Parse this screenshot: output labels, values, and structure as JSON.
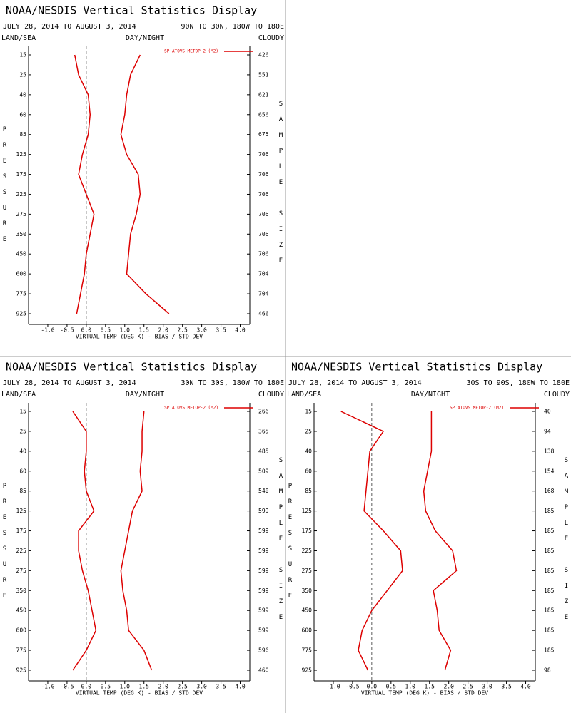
{
  "chart_data": [
    {
      "type": "line",
      "title": "NOAA/NESDIS Vertical Statistics Display",
      "subtitle": "JULY 28, 2014 TO AUGUST 3, 2014",
      "region": "90N TO 30N, 180W TO 180E",
      "land_sea": "LAND/SEA",
      "day_night": "DAY/NIGHT",
      "cloud": "CLOUDY",
      "y_label": "PRESSURE",
      "y2_label": "SAMPLE SIZE",
      "x_label": "VIRTUAL TEMP (DEG K) - BIAS / STD DEV",
      "categories": [
        "15",
        "25",
        "40",
        "60",
        "85",
        "125",
        "175",
        "225",
        "275",
        "350",
        "450",
        "600",
        "775",
        "925"
      ],
      "sample_size": [
        426,
        551,
        621,
        656,
        675,
        706,
        706,
        706,
        706,
        706,
        706,
        704,
        704,
        466
      ],
      "series": [
        {
          "name": "SP ATOVS METOP-2 (M2)",
          "color": "#dd0000",
          "values": [
            -0.3,
            -0.2,
            0.05,
            0.1,
            0.05,
            -0.1,
            -0.2,
            0.0,
            0.2,
            0.1,
            0.0,
            -0.05,
            -0.15,
            -0.25
          ],
          "std_dev": [
            1.4,
            1.15,
            1.05,
            1.0,
            0.9,
            1.05,
            1.35,
            1.4,
            1.3,
            1.15,
            1.1,
            1.05,
            1.55,
            2.15
          ]
        }
      ],
      "xlim": [
        -1.5,
        4.25
      ],
      "xticks": [
        {
          "value": -1,
          "label": "-1.0"
        },
        {
          "value": -0.5,
          "label": "-0.5"
        },
        {
          "value": 0,
          "label": "0.0"
        },
        0.5,
        {
          "value": 1,
          "label": "1.0"
        },
        1.5,
        {
          "value": 2,
          "label": "2.0"
        },
        2.5,
        {
          "value": 3,
          "label": "3.0"
        },
        3.5,
        {
          "value": 4,
          "label": "4.0"
        }
      ],
      "legend": "top-right"
    },
    {
      "type": "line",
      "title": "NOAA/NESDIS Vertical Statistics Display",
      "subtitle": "JULY 28, 2014 TO AUGUST 3, 2014",
      "region": "30N TO 30S, 180W TO 180E",
      "land_sea": "LAND/SEA",
      "day_night": "DAY/NIGHT",
      "cloud": "CLOUDY",
      "y_label": "PRESSURE",
      "y2_label": "SAMPLE SIZE",
      "x_label": "VIRTUAL TEMP (DEG K) - BIAS / STD DEV",
      "categories": [
        "15",
        "25",
        "40",
        "60",
        "85",
        "125",
        "175",
        "225",
        "275",
        "350",
        "450",
        "600",
        "775",
        "925"
      ],
      "sample_size": [
        266,
        365,
        485,
        509,
        540,
        599,
        599,
        599,
        599,
        599,
        599,
        599,
        596,
        460
      ],
      "series": [
        {
          "name": "SP ATOVS METOP-2 (M2)",
          "color": "#dd0000",
          "values": [
            -0.35,
            0.0,
            0.0,
            -0.05,
            0.0,
            0.2,
            -0.2,
            -0.2,
            -0.1,
            0.05,
            0.15,
            0.25,
            0.0,
            -0.35
          ],
          "std_dev": [
            1.5,
            1.45,
            1.45,
            1.4,
            1.45,
            1.2,
            1.1,
            1.0,
            0.9,
            0.95,
            1.05,
            1.1,
            1.5,
            1.7
          ]
        }
      ],
      "xlim": [
        -1.5,
        4.25
      ],
      "xticks": [
        {
          "value": -1,
          "label": "-1.0"
        },
        {
          "value": -0.5,
          "label": "-0.5"
        },
        {
          "value": 0,
          "label": "0.0"
        },
        0.5,
        {
          "value": 1,
          "label": "1.0"
        },
        1.5,
        {
          "value": 2,
          "label": "2.0"
        },
        2.5,
        {
          "value": 3,
          "label": "3.0"
        },
        3.5,
        {
          "value": 4,
          "label": "4.0"
        }
      ],
      "legend": "top-right"
    },
    {
      "type": "line",
      "title": "NOAA/NESDIS Vertical Statistics Display",
      "subtitle": "JULY 28, 2014 TO AUGUST 3, 2014",
      "region": "30S TO 90S, 180W TO 180E",
      "land_sea": "LAND/SEA",
      "day_night": "DAY/NIGHT",
      "cloud": "CLOUDY",
      "y_label": "PRESSURE",
      "y2_label": "SAMPLE SIZE",
      "x_label": "VIRTUAL TEMP (DEG K) - BIAS / STD DEV",
      "categories": [
        "15",
        "25",
        "40",
        "60",
        "85",
        "125",
        "175",
        "225",
        "275",
        "350",
        "450",
        "600",
        "775",
        "925"
      ],
      "sample_size": [
        40,
        94,
        138,
        154,
        168,
        185,
        185,
        185,
        185,
        185,
        185,
        185,
        185,
        98
      ],
      "series": [
        {
          "name": "SP ATOVS METOP-2 (M2)",
          "color": "#dd0000",
          "values": [
            -0.8,
            0.3,
            -0.05,
            -0.1,
            -0.15,
            -0.2,
            0.3,
            0.75,
            0.8,
            0.4,
            0.0,
            -0.25,
            -0.35,
            -0.1
          ],
          "std_dev": [
            1.55,
            1.55,
            1.55,
            1.45,
            1.35,
            1.4,
            1.65,
            2.1,
            2.2,
            1.6,
            1.7,
            1.75,
            2.05,
            1.9
          ]
        }
      ],
      "xlim": [
        -1.5,
        4.25
      ],
      "xticks": [
        {
          "value": -1,
          "label": "-1.0"
        },
        {
          "value": -0.5,
          "label": "-0.5"
        },
        {
          "value": 0,
          "label": "0.0"
        },
        0.5,
        {
          "value": 1,
          "label": "1.0"
        },
        1.5,
        {
          "value": 2,
          "label": "2.0"
        },
        2.5,
        {
          "value": 3,
          "label": "3.0"
        },
        3.5,
        {
          "value": 4,
          "label": "4.0"
        }
      ],
      "legend": "top-right"
    }
  ]
}
